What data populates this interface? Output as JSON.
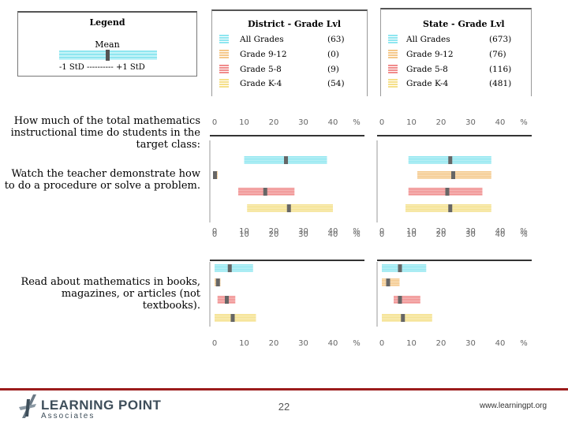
{
  "legend": {
    "title": "Legend",
    "mean_label": "Mean",
    "std_label": "-1 StD ---------- +1 StD"
  },
  "panels": {
    "district": {
      "title": "District - Grade Lvl",
      "groups": [
        {
          "label": "All Grades",
          "n": "(63)",
          "color": "#8fe6f0"
        },
        {
          "label": "Grade 9-12",
          "n": "(0)",
          "color": "#f5c88a"
        },
        {
          "label": "Grade 5-8",
          "n": "(9)",
          "color": "#f08c8c"
        },
        {
          "label": "Grade K-4",
          "n": "(54)",
          "color": "#f5e08a"
        }
      ]
    },
    "state": {
      "title": "State - Grade Lvl",
      "groups": [
        {
          "label": "All Grades",
          "n": "(673)",
          "color": "#8fe6f0"
        },
        {
          "label": "Grade 9-12",
          "n": "(76)",
          "color": "#f5c88a"
        },
        {
          "label": "Grade 5-8",
          "n": "(116)",
          "color": "#f08c8c"
        },
        {
          "label": "Grade K-4",
          "n": "(481)",
          "color": "#f5e08a"
        }
      ]
    }
  },
  "questions": {
    "header": "How much of the total mathematics instructional time do students in the target class:",
    "q1": "Watch the teacher demonstrate how to do a procedure or solve a problem.",
    "q2": "Read about mathematics in books, magazines, or articles (not textbooks)."
  },
  "chart_data": [
    {
      "type": "bar",
      "title": "Watch the teacher demonstrate how to do a procedure or solve a problem. - District",
      "axis_ticks": [
        "0",
        "10",
        "20",
        "30",
        "40",
        "%"
      ],
      "xlim": [
        0,
        48
      ],
      "series": [
        {
          "name": "All Grades",
          "mean": 24,
          "low": 10,
          "high": 38
        },
        {
          "name": "Grade 9-12",
          "mean": 0,
          "low": 0,
          "high": 1
        },
        {
          "name": "Grade 5-8",
          "mean": 17,
          "low": 8,
          "high": 27
        },
        {
          "name": "Grade K-4",
          "mean": 25,
          "low": 11,
          "high": 40
        }
      ]
    },
    {
      "type": "bar",
      "title": "Watch the teacher demonstrate how to do a procedure or solve a problem. - State",
      "axis_ticks": [
        "0",
        "10",
        "20",
        "30",
        "40",
        "%"
      ],
      "xlim": [
        0,
        48
      ],
      "series": [
        {
          "name": "All Grades",
          "mean": 23,
          "low": 9,
          "high": 37
        },
        {
          "name": "Grade 9-12",
          "mean": 24,
          "low": 12,
          "high": 37
        },
        {
          "name": "Grade 5-8",
          "mean": 22,
          "low": 9,
          "high": 34
        },
        {
          "name": "Grade K-4",
          "mean": 23,
          "low": 8,
          "high": 37
        }
      ]
    },
    {
      "type": "bar",
      "title": "Read about mathematics in books, magazines, or articles (not textbooks). - District",
      "axis_ticks": [
        "0",
        "10",
        "20",
        "30",
        "40",
        "%"
      ],
      "xlim": [
        0,
        48
      ],
      "series": [
        {
          "name": "All Grades",
          "mean": 5,
          "low": 0,
          "high": 13
        },
        {
          "name": "Grade 9-12",
          "mean": 1,
          "low": 0,
          "high": 2
        },
        {
          "name": "Grade 5-8",
          "mean": 4,
          "low": 1,
          "high": 7
        },
        {
          "name": "Grade K-4",
          "mean": 6,
          "low": 0,
          "high": 14
        }
      ]
    },
    {
      "type": "bar",
      "title": "Read about mathematics in books, magazines, or articles (not textbooks). - State",
      "axis_ticks": [
        "0",
        "10",
        "20",
        "30",
        "40",
        "%"
      ],
      "xlim": [
        0,
        48
      ],
      "series": [
        {
          "name": "All Grades",
          "mean": 6,
          "low": 0,
          "high": 15
        },
        {
          "name": "Grade 9-12",
          "mean": 2,
          "low": 0,
          "high": 6
        },
        {
          "name": "Grade 5-8",
          "mean": 6,
          "low": 4,
          "high": 13
        },
        {
          "name": "Grade K-4",
          "mean": 7,
          "low": 0,
          "high": 17
        }
      ]
    }
  ],
  "footer": {
    "page_number": "22",
    "url": "www.learningpt.org",
    "logo_main": "LEARNING POINT",
    "logo_sub": "Associates"
  }
}
